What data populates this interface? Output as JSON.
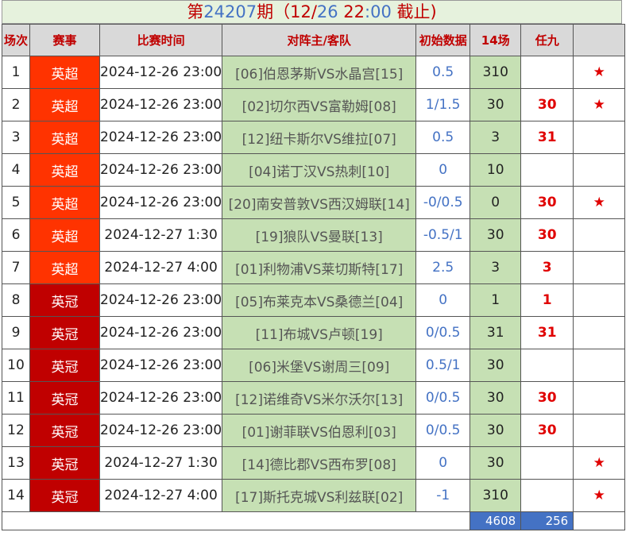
{
  "title": {
    "p1": "第",
    "issue": "24207",
    "p2": "期（12/",
    "day": "26",
    "p3": " 22",
    "min": ":00",
    "p4": " 截止)"
  },
  "headers": [
    "场次",
    "赛事",
    "比赛时间",
    "对阵主/客队",
    "初始数据",
    "14场",
    "任九",
    ""
  ],
  "rows": [
    {
      "no": "1",
      "league": "英超",
      "time": "2024-12-26 23:00",
      "match": "[06]伯恩茅斯VS水晶宫[15]",
      "odds": "0.5",
      "c14": "310",
      "r9": "",
      "star": "★"
    },
    {
      "no": "2",
      "league": "英超",
      "time": "2024-12-26 23:00",
      "match": "[02]切尔西VS富勒姆[08]",
      "odds": "1/1.5",
      "c14": "30",
      "r9": "30",
      "star": "★"
    },
    {
      "no": "3",
      "league": "英超",
      "time": "2024-12-26 23:00",
      "match": "[12]纽卡斯尔VS维拉[07]",
      "odds": "0.5",
      "c14": "3",
      "r9": "31",
      "star": ""
    },
    {
      "no": "4",
      "league": "英超",
      "time": "2024-12-26 23:00",
      "match": "[04]诺丁汉VS热刺[10]",
      "odds": "0",
      "c14": "10",
      "r9": "",
      "star": ""
    },
    {
      "no": "5",
      "league": "英超",
      "time": "2024-12-26 23:00",
      "match": "[20]南安普敦VS西汉姆联[14]",
      "odds": "-0/0.5",
      "c14": "0",
      "r9": "30",
      "star": "★"
    },
    {
      "no": "6",
      "league": "英超",
      "time": "2024-12-27 1:30",
      "match": "[19]狼队VS曼联[13]",
      "odds": "-0.5/1",
      "c14": "30",
      "r9": "30",
      "star": ""
    },
    {
      "no": "7",
      "league": "英超",
      "time": "2024-12-27 4:00",
      "match": "[01]利物浦VS莱切斯特[17]",
      "odds": "2.5",
      "c14": "3",
      "r9": "3",
      "star": ""
    },
    {
      "no": "8",
      "league": "英冠",
      "time": "2024-12-26 23:00",
      "match": "[05]布莱克本VS桑德兰[04]",
      "odds": "0",
      "c14": "1",
      "r9": "1",
      "star": ""
    },
    {
      "no": "9",
      "league": "英冠",
      "time": "2024-12-26 23:00",
      "match": "[11]布城VS卢顿[19]",
      "odds": "0/0.5",
      "c14": "31",
      "r9": "31",
      "star": ""
    },
    {
      "no": "10",
      "league": "英冠",
      "time": "2024-12-26 23:00",
      "match": "[06]米堡VS谢周三[09]",
      "odds": "0.5/1",
      "c14": "30",
      "r9": "",
      "star": ""
    },
    {
      "no": "11",
      "league": "英冠",
      "time": "2024-12-26 23:00",
      "match": "[12]诺维奇VS米尔沃尔[13]",
      "odds": "0/0.5",
      "c14": "30",
      "r9": "30",
      "star": ""
    },
    {
      "no": "12",
      "league": "英冠",
      "time": "2024-12-26 23:00",
      "match": "[01]谢菲联VS伯恩利[03]",
      "odds": "0/0.5",
      "c14": "30",
      "r9": "30",
      "star": ""
    },
    {
      "no": "13",
      "league": "英冠",
      "time": "2024-12-27 1:30",
      "match": "[14]德比郡VS西布罗[08]",
      "odds": "0",
      "c14": "30",
      "r9": "",
      "star": "★"
    },
    {
      "no": "14",
      "league": "英冠",
      "time": "2024-12-27 4:00",
      "match": "[17]斯托克城VS利兹联[02]",
      "odds": "-1",
      "c14": "310",
      "r9": "",
      "star": "★"
    }
  ],
  "totals": {
    "c14": "4608",
    "r9": "256"
  },
  "colors": {
    "premier": "#ff3300",
    "championship": "#c00000",
    "match_bg": "#c6e0b4",
    "accent_blue": "#4472c4"
  }
}
